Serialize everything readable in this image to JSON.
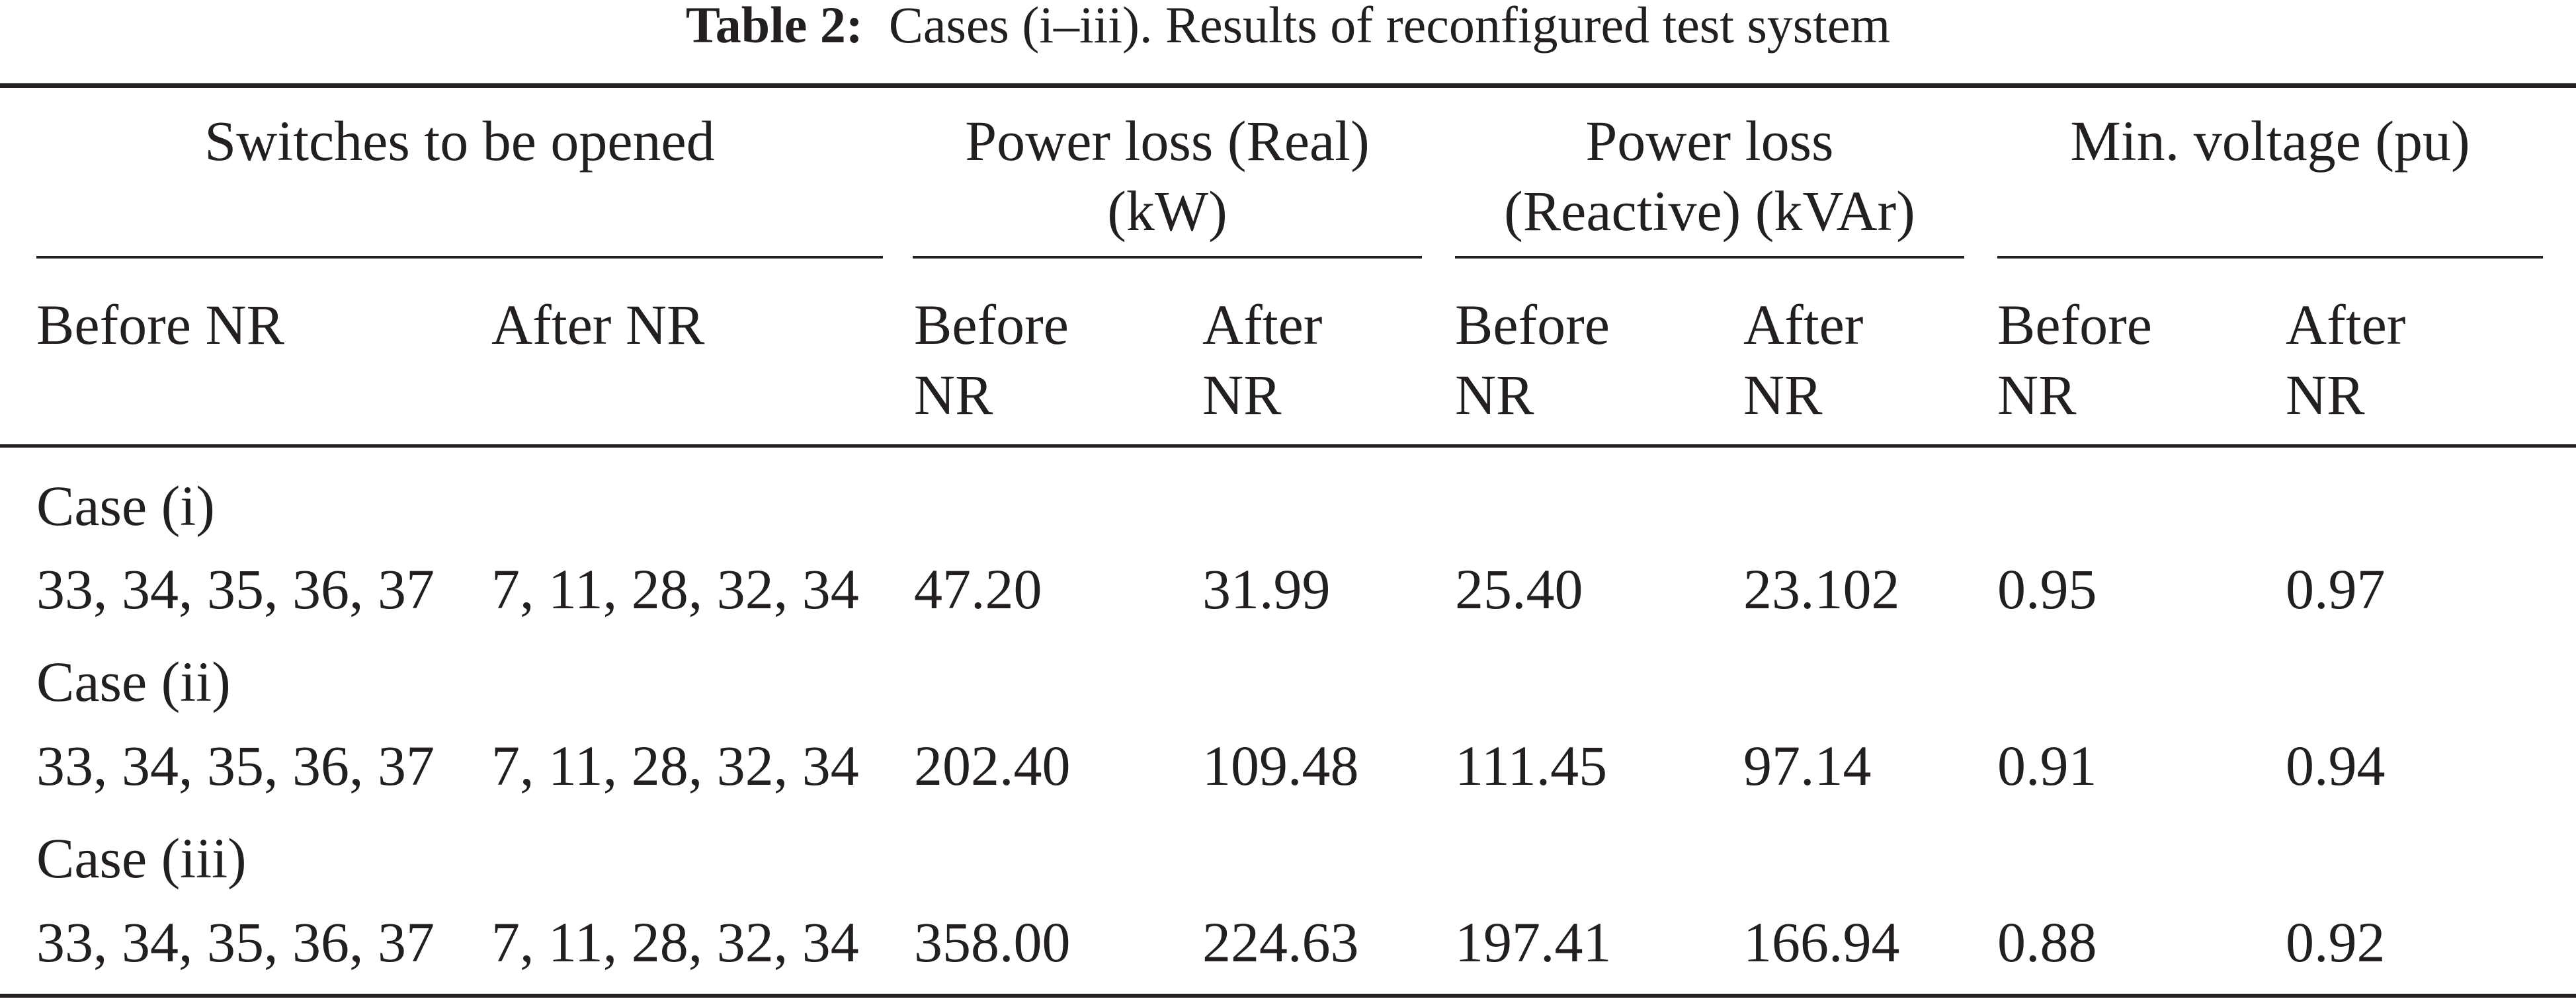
{
  "caption": {
    "label": "Table 2:",
    "text": "Cases (i–iii). Results of reconfigured test system"
  },
  "header": {
    "groups": [
      {
        "lines": [
          "Switches to be opened"
        ]
      },
      {
        "lines": [
          "Power loss (Real)",
          "(kW)"
        ]
      },
      {
        "lines": [
          "Power loss",
          "(Reactive) (kVAr)"
        ]
      },
      {
        "lines": [
          "Min. voltage (pu)"
        ]
      }
    ],
    "subheaders": [
      {
        "lines": [
          "Before NR"
        ]
      },
      {
        "lines": [
          "After NR"
        ]
      },
      {
        "lines": [
          "Before",
          "NR"
        ]
      },
      {
        "lines": [
          "After",
          "NR"
        ]
      },
      {
        "lines": [
          "Before",
          "NR"
        ]
      },
      {
        "lines": [
          "After",
          "NR"
        ]
      },
      {
        "lines": [
          "Before",
          "NR"
        ]
      },
      {
        "lines": [
          "After",
          "NR"
        ]
      }
    ]
  },
  "sections": [
    {
      "label": "Case (i)",
      "row": [
        "33, 34, 35, 36, 37",
        "7, 11, 28, 32, 34",
        "47.20",
        "31.99",
        "25.40",
        "23.102",
        "0.95",
        "0.97"
      ]
    },
    {
      "label": "Case (ii)",
      "row": [
        "33, 34, 35, 36, 37",
        "7, 11, 28, 32, 34",
        "202.40",
        "109.48",
        "111.45",
        "97.14",
        "0.91",
        "0.94"
      ]
    },
    {
      "label": "Case (iii)",
      "row": [
        "33, 34, 35, 36, 37",
        "7, 11, 28, 32, 34",
        "358.00",
        "224.63",
        "197.41",
        "166.94",
        "0.88",
        "0.92"
      ]
    }
  ]
}
